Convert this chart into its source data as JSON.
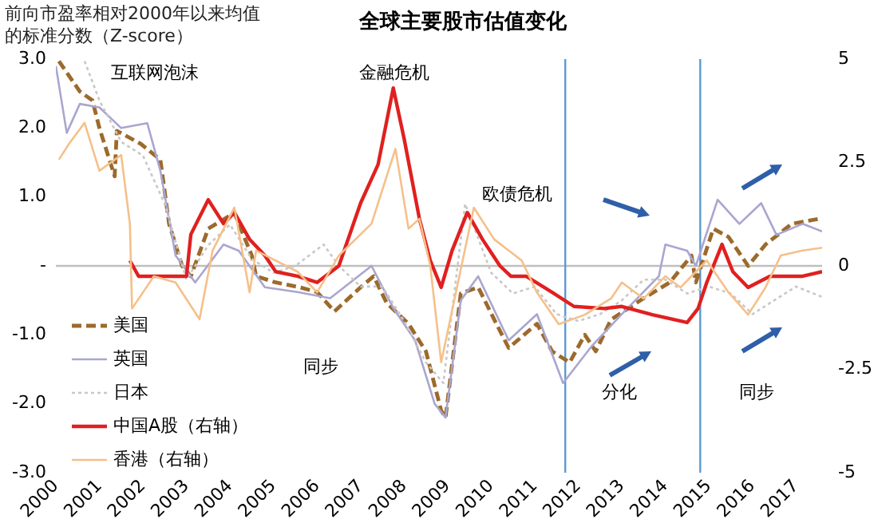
{
  "chart_data": {
    "type": "line",
    "title": "全球主要股市估值变化",
    "ylabel": "前向市盈率相对2000年以来均值的标准分数（Z-score）",
    "xlim": [
      2000,
      2017.6
    ],
    "xticks": [
      2000,
      2001,
      2002,
      2003,
      2004,
      2005,
      2006,
      2007,
      2008,
      2009,
      2010,
      2011,
      2012,
      2013,
      2014,
      2015,
      2016,
      2017
    ],
    "ylim": [
      -3,
      3
    ],
    "yticks": [
      {
        "value": 3,
        "label": "3.0"
      },
      {
        "value": 2,
        "label": "2.0"
      },
      {
        "value": 1,
        "label": "1.0"
      },
      {
        "value": 0,
        "label": "-"
      },
      {
        "value": -1,
        "label": "-1.0"
      },
      {
        "value": -2,
        "label": "-2.0"
      },
      {
        "value": -3,
        "label": "-3.0"
      }
    ],
    "y2lim": [
      -5,
      5
    ],
    "y2ticks": [
      5,
      2.5,
      0,
      -2.5,
      -5
    ],
    "grid": false,
    "legend": "bottom left",
    "marker": "none",
    "ref_lines": [
      {
        "axis": "y",
        "value": 0,
        "color": "#bfbfbf"
      },
      {
        "axis": "x",
        "value": 2011.7,
        "color": "#5b9bd5"
      },
      {
        "axis": "x",
        "value": 2014.8,
        "color": "#5b9bd5"
      }
    ],
    "annotations": [
      "互联网泡沫",
      "金融危机",
      "欧债危机",
      "同步",
      "分化",
      "同步"
    ],
    "series": [
      {
        "name": "美国",
        "color": "#9c6a2c",
        "line_style": "dashed",
        "x": [
          2000.07,
          2000.55,
          2000.84,
          2001.0,
          2001.35,
          2001.4,
          2001.95,
          2002.4,
          2002.6,
          2002.9,
          2003.1,
          2003.5,
          2004.1,
          2004.5,
          2004.6,
          2005.05,
          2005.6,
          2006.0,
          2006.4,
          2007.0,
          2007.3,
          2007.6,
          2008.1,
          2008.5,
          2008.85,
          2008.95,
          2009.3,
          2009.7,
          2010.07,
          2010.4,
          2011.05,
          2011.4,
          2011.8,
          2012.15,
          2012.4,
          2012.75,
          2013.5,
          2014.1,
          2014.6,
          2014.7,
          2015.1,
          2015.45,
          2015.9,
          2016.3,
          2016.9,
          2017.5
        ],
        "values": [
          2.97,
          2.53,
          2.4,
          2.0,
          1.3,
          1.96,
          1.77,
          1.54,
          0.61,
          0,
          -0.15,
          0.54,
          0.77,
          0.15,
          -0.15,
          -0.24,
          -0.31,
          -0.38,
          -0.66,
          -0.31,
          -0.15,
          -0.54,
          -0.84,
          -1.24,
          -2.1,
          -2.2,
          -0.4,
          -0.31,
          -0.78,
          -1.19,
          -0.84,
          -1.24,
          -1.4,
          -1.0,
          -1.24,
          -0.78,
          -0.47,
          -0.24,
          0.15,
          -0.24,
          0.54,
          0.42,
          0,
          0.31,
          0.61,
          0.68
        ]
      },
      {
        "name": "英国",
        "color": "#a9a6cf",
        "line_style": "solid",
        "x": [
          2000.0,
          2000.25,
          2000.55,
          2001.0,
          2001.5,
          2002.1,
          2002.4,
          2002.75,
          2003.2,
          2003.85,
          2004.2,
          2004.8,
          2005.55,
          2006.3,
          2007.25,
          2007.75,
          2008.25,
          2008.7,
          2008.95,
          2009.3,
          2009.7,
          2010.4,
          2011.05,
          2011.65,
          2012.3,
          2013.0,
          2013.85,
          2014.0,
          2014.5,
          2014.7,
          2015.2,
          2015.7,
          2016.2,
          2016.55,
          2017.15,
          2017.6
        ],
        "values": [
          2.9,
          1.93,
          2.35,
          2.3,
          2.0,
          2.07,
          1.38,
          0.15,
          -0.24,
          0.31,
          0.22,
          -0.31,
          -0.38,
          -0.47,
          0,
          -0.61,
          -1.08,
          -2.0,
          -2.2,
          -0.5,
          -0.15,
          -1.08,
          -0.7,
          -1.7,
          -1.17,
          -0.7,
          -0.15,
          0.31,
          0.22,
          0,
          0.96,
          0.61,
          0.91,
          0.45,
          0.61,
          0.5
        ]
      },
      {
        "name": "日本",
        "color": "#c8c8c8",
        "line_style": "dotted",
        "x": [
          2000.66,
          2001.0,
          2001.5,
          2002.0,
          2002.5,
          2003.0,
          2003.5,
          2004.0,
          2004.5,
          2005.0,
          2005.5,
          2006.15,
          2006.5,
          2007.0,
          2007.5,
          2008.0,
          2008.5,
          2008.9,
          2009.4,
          2010.0,
          2010.5,
          2011.0,
          2011.5,
          2012.0,
          2012.5,
          2013.0,
          2013.5,
          2014.0,
          2014.5,
          2015.0,
          2015.5,
          2016.0,
          2016.5,
          2017.0,
          2017.6
        ],
        "values": [
          2.97,
          2.4,
          1.8,
          1.6,
          0.9,
          -0.2,
          0.3,
          0.6,
          0.1,
          -0.1,
          0,
          0.31,
          0,
          -0.3,
          -0.3,
          -0.8,
          -1.4,
          -1.7,
          0.9,
          -0.1,
          -0.4,
          -0.3,
          -0.7,
          -0.8,
          -0.7,
          -0.5,
          -0.2,
          -0.2,
          -0.4,
          -0.3,
          -0.4,
          -0.7,
          -0.5,
          -0.3,
          -0.45
        ]
      },
      {
        "name": "中国A股（右轴）",
        "color": "#e02020",
        "line_style": "solid",
        "axis": "y2",
        "x": [
          2001.7,
          2001.9,
          2002.4,
          2003.0,
          2003.1,
          2003.5,
          2003.85,
          2004.1,
          2004.45,
          2004.8,
          2005.05,
          2005.55,
          2006.0,
          2006.5,
          2007.0,
          2007.4,
          2007.75,
          2008.0,
          2008.35,
          2008.6,
          2008.85,
          2009.1,
          2009.45,
          2009.8,
          2010.2,
          2010.45,
          2010.8,
          2011.4,
          2011.9,
          2012.6,
          2013.0,
          2013.7,
          2014.5,
          2014.75,
          2014.95,
          2015.3,
          2015.55,
          2015.9,
          2016.4,
          2017.15,
          2017.6
        ],
        "values": [
          0.13,
          -0.25,
          -0.25,
          -0.25,
          0.76,
          1.6,
          1.02,
          1.29,
          0.64,
          0.25,
          -0.14,
          -0.25,
          -0.4,
          0,
          1.52,
          2.45,
          4.3,
          3.07,
          1.14,
          0.13,
          -0.52,
          0.37,
          1.29,
          0.64,
          0,
          -0.25,
          -0.25,
          -0.64,
          -0.98,
          -1.03,
          -0.98,
          -1.18,
          -1.37,
          -1.03,
          -0.4,
          0.52,
          -0.14,
          -0.52,
          -0.25,
          -0.25,
          -0.14
        ]
      },
      {
        "name": "香港（右轴）",
        "color": "#f5c08a",
        "line_style": "solid",
        "axis": "y2",
        "x": [
          2000.07,
          2000.3,
          2000.66,
          2001.0,
          2001.5,
          2001.7,
          2001.75,
          2002.25,
          2002.75,
          2003.3,
          2003.6,
          2004.1,
          2004.45,
          2004.6,
          2005.55,
          2006.0,
          2006.5,
          2007.25,
          2007.8,
          2008.1,
          2008.35,
          2008.6,
          2008.85,
          2009.6,
          2010.07,
          2010.7,
          2011.05,
          2011.55,
          2012.15,
          2012.75,
          2013.0,
          2013.5,
          2014.0,
          2014.35,
          2014.7,
          2014.95,
          2015.45,
          2015.9,
          2016.3,
          2016.65,
          2017.15,
          2017.6
        ],
        "values": [
          2.57,
          2.95,
          3.46,
          2.3,
          2.68,
          1.02,
          -1.03,
          -0.25,
          -0.4,
          -1.29,
          0.37,
          1.41,
          -0.64,
          0.37,
          -0.14,
          -0.64,
          0.25,
          1.02,
          2.83,
          0.9,
          1.14,
          0,
          -2.33,
          1.41,
          0.64,
          0.13,
          -0.64,
          -1.41,
          -1.18,
          -0.79,
          -0.4,
          -0.79,
          -0.25,
          -0.52,
          -0.14,
          0.13,
          -0.64,
          -1.18,
          -0.52,
          0.25,
          0.37,
          0.44
        ]
      }
    ]
  }
}
